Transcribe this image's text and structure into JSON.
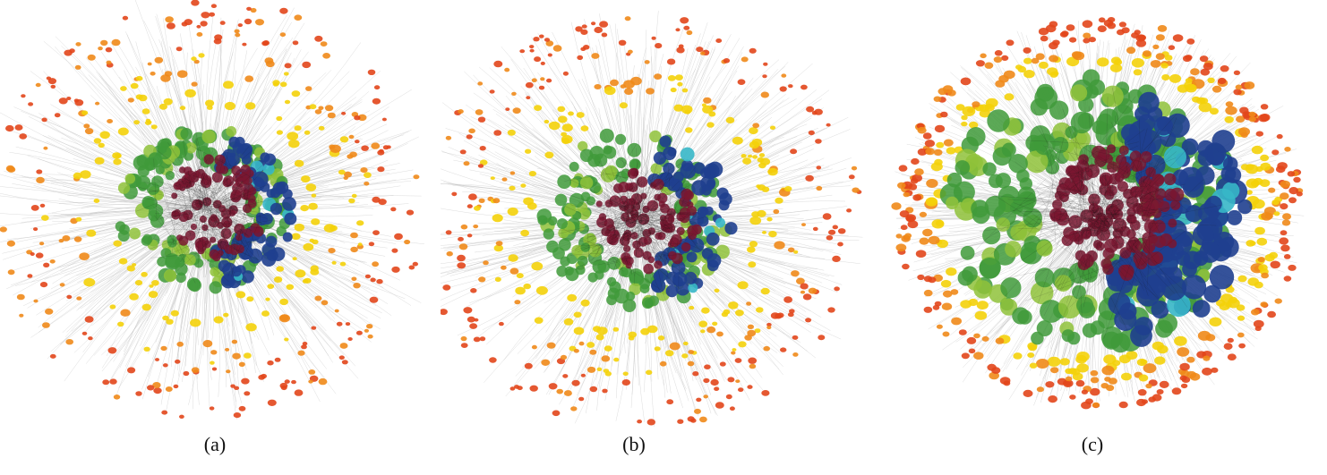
{
  "panels": [
    {
      "label": "(a)",
      "colors": [
        "#e2461b",
        "#ef8a1a",
        "#f4d10a",
        "#8fc23a",
        "#3f9a3a",
        "#37b7c8",
        "#1f3f8f",
        "#7a1630"
      ]
    },
    {
      "label": "(b)",
      "colors": [
        "#e2461b",
        "#ef8a1a",
        "#f4d10a",
        "#8fc23a",
        "#3f9a3a",
        "#37b7c8",
        "#1f3f8f",
        "#7a1630"
      ]
    },
    {
      "label": "(c)",
      "colors": [
        "#e2461b",
        "#ef8a1a",
        "#f4d10a",
        "#8fc23a",
        "#3f9a3a",
        "#37b7c8",
        "#1f3f8f",
        "#7a1630"
      ]
    }
  ]
}
